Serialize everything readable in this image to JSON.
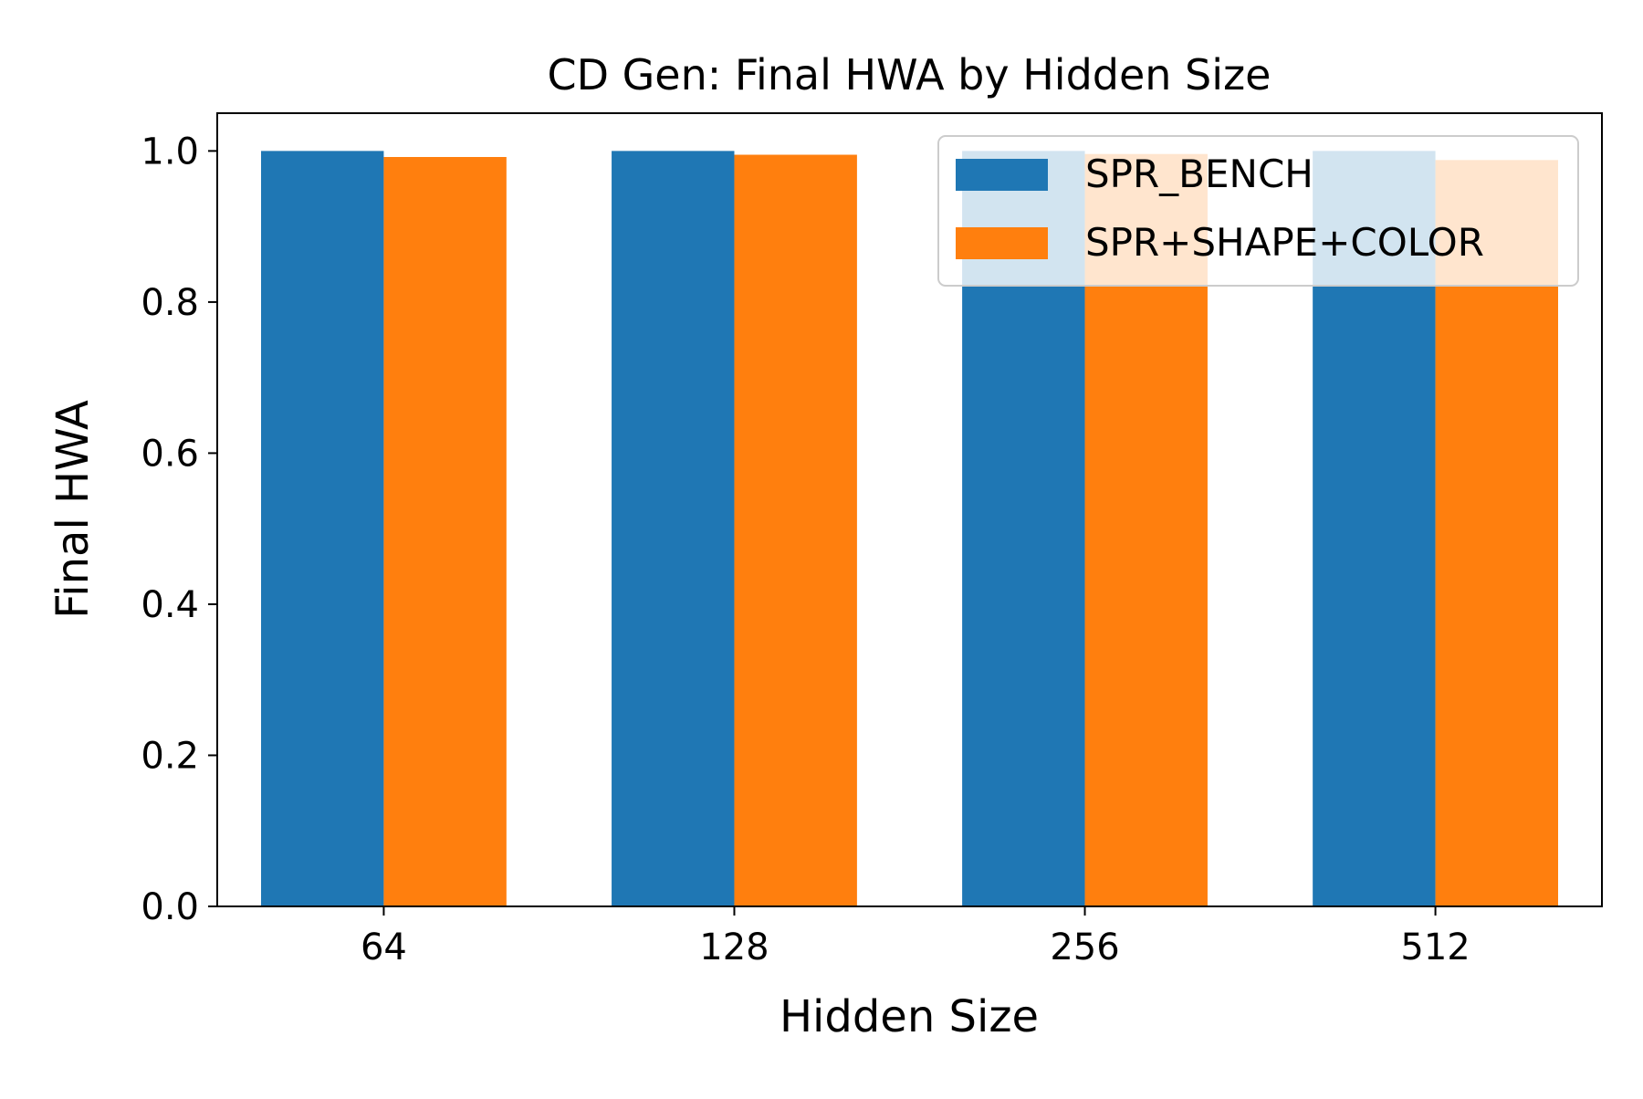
{
  "chart_data": {
    "type": "bar",
    "title": "CD Gen: Final HWA by Hidden Size",
    "xlabel": "Hidden Size",
    "ylabel": "Final HWA",
    "categories": [
      "64",
      "128",
      "256",
      "512"
    ],
    "series": [
      {
        "name": "SPR_BENCH",
        "color": "#1f77b4",
        "values": [
          1.0,
          1.0,
          1.0,
          1.0
        ]
      },
      {
        "name": "SPR+SHAPE+COLOR",
        "color": "#ff7f0e",
        "values": [
          0.992,
          0.995,
          0.996,
          0.988
        ]
      }
    ],
    "ylim": [
      0,
      1.05
    ],
    "yticks": [
      "0.0",
      "0.2",
      "0.4",
      "0.6",
      "0.8",
      "1.0"
    ],
    "grid": false,
    "legend_position": "top-right"
  }
}
